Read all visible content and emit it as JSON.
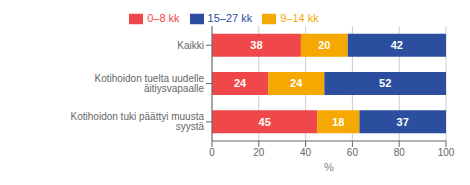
{
  "chart_data": {
    "type": "bar",
    "orientation": "horizontal",
    "stacked": true,
    "categories": [
      "Kotihoidon tuki päättyi muusta syystä",
      "Kotihoidon tuelta uudelle äitiysvapaalle",
      "Kaikki"
    ],
    "series": [
      {
        "name": "0–8 kk",
        "color": "#f0474a",
        "values": [
          45,
          24,
          38
        ]
      },
      {
        "name": "9–14 kk",
        "color": "#f5a800",
        "values": [
          18,
          24,
          20
        ]
      },
      {
        "name": "15–27 kk",
        "color": "#2b4f9e",
        "values": [
          37,
          52,
          42
        ]
      }
    ],
    "xlabel": "%",
    "xlim": [
      0,
      100
    ],
    "xticks": [
      0,
      20,
      40,
      60,
      80,
      100
    ],
    "grid": true,
    "legend": "top",
    "data_labels": true
  }
}
